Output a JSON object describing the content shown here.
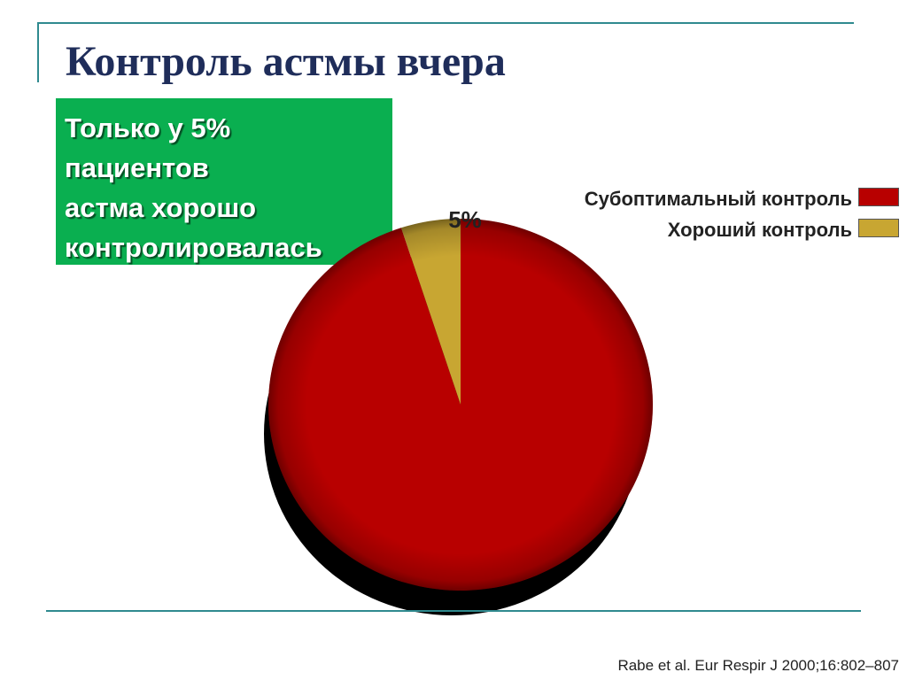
{
  "slide": {
    "title": "Контроль астмы вчера",
    "callout_lines": [
      "Только у 5%",
      "пациентов",
      "астма хорошо",
      "контролировалась"
    ],
    "source": "Rabe et al. Eur Respir J 2000;16:802–807",
    "accent_color": "#0aaf50",
    "rule_color": "#2f8a8f"
  },
  "chart_data": {
    "type": "pie",
    "slices": [
      {
        "label": "Субоптимальный контроль",
        "value": 95,
        "color": "#b80000"
      },
      {
        "label": "Хороший контроль",
        "value": 5,
        "color": "#c8a632"
      }
    ],
    "data_labels": [
      "5%"
    ],
    "legend_position": "top-right"
  }
}
